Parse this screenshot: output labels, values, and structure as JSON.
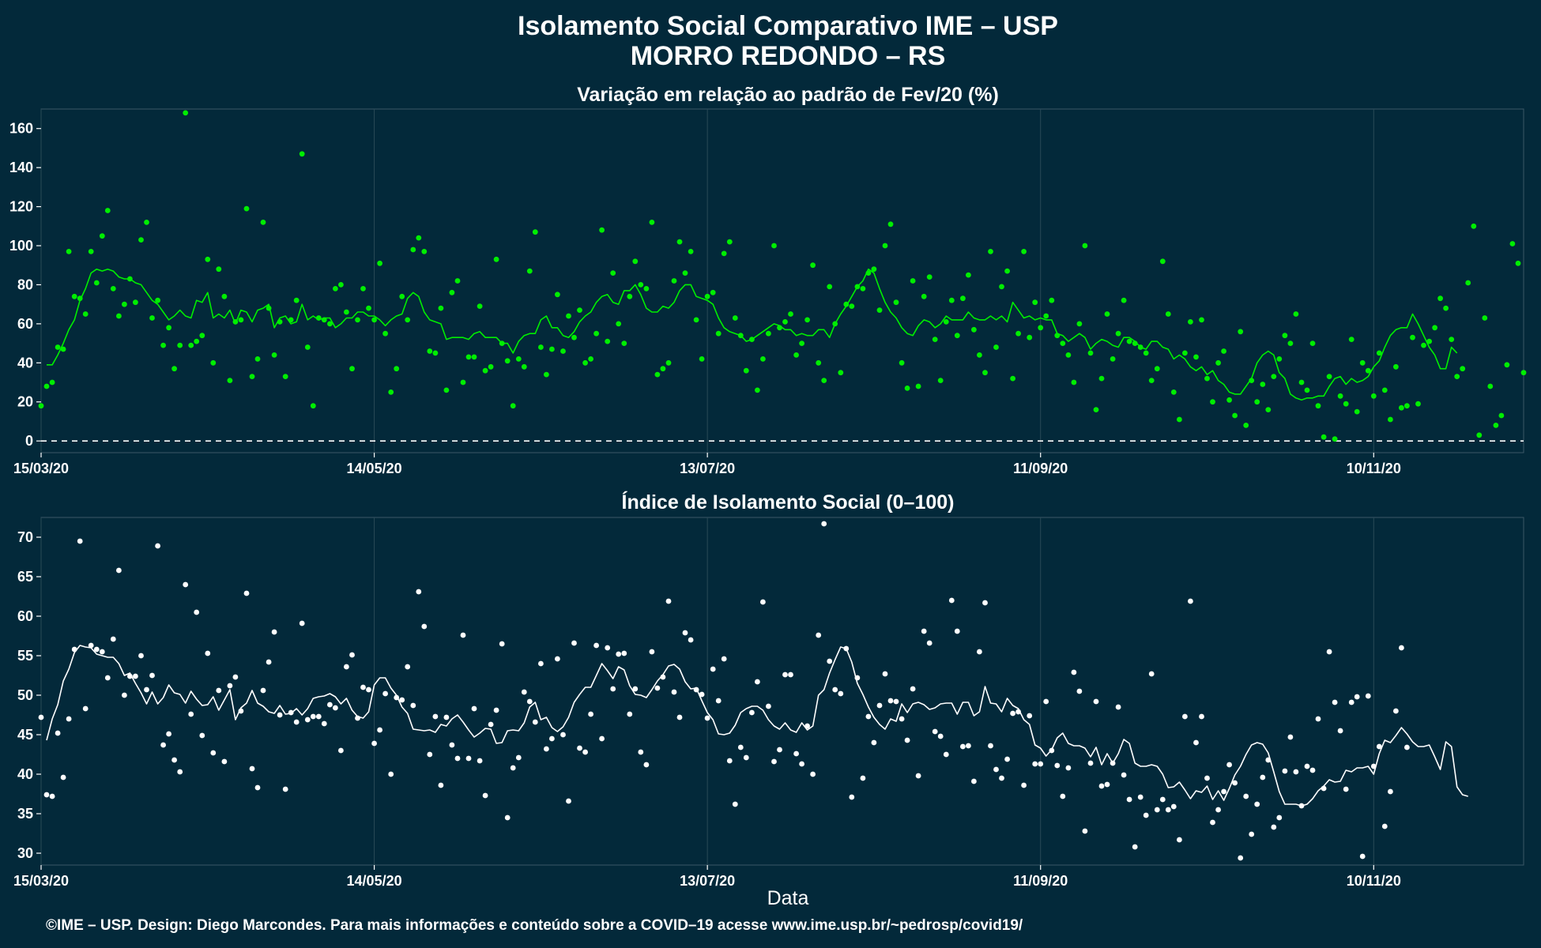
{
  "title": "Isolamento Social Comparativo IME – USP",
  "subtitle": "MORRO REDONDO – RS",
  "footer": "©IME – USP. Design: Diego Marcondes. Para mais informações e conteúdo sobre a COVID–19 acesse www.ime.usp.br/~pedrosp/covid19/",
  "colors": {
    "background": "#03293a",
    "variation_series": "#00ee00",
    "index_series": "#ffffff",
    "grid": "#2a4a57"
  },
  "chart_data": [
    {
      "type": "scatter",
      "title": "Variação em relação ao padrão de Fev/20 (%)",
      "xlabel": "",
      "ylabel": "",
      "x_ticks": [
        "15/03/20",
        "14/05/20",
        "13/07/20",
        "11/09/20",
        "10/11/20"
      ],
      "y_ticks": [
        0,
        20,
        40,
        60,
        80,
        100,
        120,
        140,
        160
      ],
      "xlim": [
        "15/03/20",
        "07/12/20"
      ],
      "ylim": [
        -6,
        170
      ],
      "reference_line": 0,
      "grid": true,
      "series": [
        {
          "kind": "points",
          "start_date": "15/03/20",
          "values": [
            18,
            28,
            30,
            48,
            47,
            97,
            74,
            73,
            65,
            97,
            81,
            105,
            118,
            78,
            64,
            70,
            83,
            71,
            103,
            112,
            63,
            72,
            49,
            58,
            37,
            49,
            168,
            49,
            51,
            54,
            93,
            40,
            88,
            74,
            31,
            61,
            62,
            119,
            33,
            42,
            112,
            68,
            44,
            61,
            33,
            62,
            72,
            147,
            48,
            18,
            63,
            62,
            60,
            78,
            80,
            66,
            37,
            62,
            78,
            68,
            62,
            91,
            55,
            25,
            37,
            74,
            62,
            98,
            104,
            97,
            46,
            45,
            68,
            26,
            76,
            82,
            30,
            43,
            43,
            69,
            36,
            38,
            93,
            50,
            41,
            18,
            42,
            38,
            87,
            107,
            48,
            34,
            47,
            75,
            46,
            64,
            53,
            67,
            40,
            42,
            55,
            108,
            51,
            86,
            60,
            50,
            74,
            92,
            80,
            78,
            112,
            34,
            37,
            40,
            82,
            102,
            86,
            97,
            62,
            42,
            74,
            76,
            55,
            96,
            102,
            63,
            54,
            36,
            52,
            26,
            42,
            55,
            100,
            58,
            61,
            65,
            44,
            50,
            62,
            90,
            40,
            31,
            79,
            60,
            35,
            70,
            69,
            79,
            78,
            86,
            88,
            67,
            100,
            111,
            71,
            40,
            27,
            82,
            28,
            74,
            84,
            52,
            31,
            61,
            72,
            54,
            73,
            85,
            57,
            44,
            35,
            97,
            48,
            79,
            87,
            32,
            55,
            97,
            53,
            71,
            58,
            64,
            72,
            54,
            50,
            44,
            30,
            60,
            100,
            45,
            16,
            32,
            65,
            42,
            55,
            72,
            51,
            50,
            48,
            45,
            31,
            37,
            92,
            65,
            25,
            11,
            45,
            61,
            43,
            62,
            32,
            20,
            40,
            46,
            21,
            13,
            56,
            8,
            31,
            20,
            29,
            16,
            33,
            42,
            54,
            50,
            65,
            30,
            26,
            50,
            18,
            2,
            33,
            1,
            23,
            19,
            52,
            15,
            40,
            36,
            23,
            45,
            26,
            11,
            38,
            17,
            18,
            53,
            19,
            49,
            51,
            58,
            73,
            68,
            52,
            33,
            37,
            81,
            110,
            3,
            63,
            28,
            8,
            13,
            39,
            101,
            91,
            35
          ]
        },
        {
          "kind": "line",
          "start_date": "16/03/20",
          "values": [
            39,
            39,
            44,
            50,
            57,
            62,
            72,
            78,
            86,
            88,
            87,
            88,
            87,
            84,
            83,
            83,
            81,
            80,
            76,
            72,
            70,
            66,
            62,
            64,
            67,
            64,
            63,
            72,
            71,
            76,
            63,
            65,
            63,
            67,
            60,
            67,
            66,
            61,
            67,
            68,
            70,
            58,
            63,
            64,
            60,
            61,
            70,
            62,
            64,
            62,
            63,
            63,
            58,
            60,
            63,
            63,
            66,
            66,
            64,
            64,
            62,
            59,
            62,
            64,
            65,
            73,
            76,
            74,
            66,
            62,
            61,
            60,
            52,
            53,
            53,
            53,
            52,
            55,
            56,
            53,
            53,
            53,
            50,
            50,
            45,
            51,
            54,
            55,
            55,
            62,
            64,
            58,
            58,
            54,
            53,
            56,
            61,
            64,
            66,
            71,
            74,
            75,
            71,
            70,
            77,
            77,
            80,
            75,
            68,
            66,
            66,
            69,
            68,
            71,
            77,
            80,
            80,
            74,
            73,
            72,
            70,
            63,
            58,
            56,
            55,
            54,
            51,
            52,
            54,
            56,
            58,
            60,
            59,
            57,
            57,
            54,
            55,
            54,
            54,
            57,
            57,
            53,
            60,
            65,
            69,
            74,
            79,
            82,
            88,
            86,
            78,
            71,
            66,
            63,
            58,
            55,
            54,
            59,
            62,
            61,
            58,
            60,
            64,
            62,
            62,
            62,
            66,
            63,
            62,
            62,
            64,
            62,
            64,
            61,
            71,
            67,
            63,
            64,
            62,
            63,
            62,
            62,
            55,
            54,
            51,
            53,
            55,
            53,
            47,
            50,
            52,
            51,
            49,
            48,
            53,
            53,
            51,
            48,
            47,
            51,
            51,
            48,
            47,
            42,
            44,
            42,
            38,
            36,
            38,
            34,
            36,
            31,
            29,
            25,
            24,
            24,
            28,
            32,
            40,
            44,
            46,
            44,
            35,
            32,
            24,
            22,
            21,
            22,
            22,
            23,
            23,
            28,
            32,
            33,
            29,
            32,
            30,
            31,
            33,
            38,
            41,
            48,
            54,
            57,
            58,
            58,
            65,
            60,
            54,
            48,
            44,
            37,
            37,
            48,
            45
          ]
        }
      ]
    },
    {
      "type": "scatter",
      "title": "Índice de Isolamento Social (0–100)",
      "xlabel": "Data",
      "ylabel": "",
      "x_ticks": [
        "15/03/20",
        "14/05/20",
        "13/07/20",
        "11/09/20",
        "10/11/20"
      ],
      "y_ticks": [
        30,
        35,
        40,
        45,
        50,
        55,
        60,
        65,
        70
      ],
      "xlim": [
        "15/03/20",
        "07/12/20"
      ],
      "ylim": [
        28.5,
        72.5
      ],
      "grid": true,
      "series": [
        {
          "kind": "points",
          "start_date": "15/03/20",
          "values": [
            47.2,
            37.4,
            37.2,
            45.2,
            39.6,
            47.0,
            55.8,
            69.5,
            48.3,
            56.3,
            55.8,
            55.5,
            52.2,
            57.1,
            65.8,
            50.0,
            52.4,
            52.4,
            55.0,
            50.7,
            52.5,
            68.9,
            43.7,
            45.1,
            41.8,
            40.3,
            64.0,
            47.6,
            60.5,
            44.9,
            55.3,
            42.7,
            50.6,
            41.6,
            51.2,
            52.3,
            48.0,
            62.9,
            40.7,
            38.3,
            50.6,
            54.2,
            58.0,
            47.5,
            38.1,
            47.8,
            46.6,
            59.1,
            46.9,
            47.3,
            47.3,
            46.4,
            48.8,
            48.4,
            43.0,
            53.6,
            55.1,
            47.1,
            51.0,
            50.7,
            43.9,
            45.6,
            50.2,
            40.0,
            49.7,
            49.4,
            53.6,
            48.7,
            63.1,
            58.7,
            42.5,
            47.3,
            38.6,
            47.2,
            43.7,
            42.0,
            57.6,
            42.0,
            48.3,
            41.7,
            37.3,
            46.3,
            48.1,
            56.5,
            34.5,
            40.8,
            42.1,
            50.4,
            49.2,
            46.6,
            54.0,
            43.2,
            44.5,
            54.6,
            45.0,
            36.6,
            56.6,
            43.3,
            42.8,
            47.6,
            56.3,
            44.5,
            56.0,
            50.8,
            55.2,
            55.3,
            47.6,
            50.8,
            42.8,
            41.2,
            55.5,
            50.9,
            52.3,
            61.9,
            50.4,
            47.2,
            57.9,
            57.0,
            50.7,
            50.1,
            47.1,
            53.3,
            49.3,
            54.6,
            41.7,
            36.2,
            43.4,
            42.1,
            47.8,
            51.7,
            61.8,
            48.6,
            41.6,
            43.1,
            52.6,
            52.6,
            42.6,
            41.3,
            46.1,
            40.0,
            57.6,
            71.7,
            54.3,
            50.7,
            50.2,
            55.9,
            37.1,
            52.2,
            39.5,
            47.3,
            44.0,
            48.7,
            52.7,
            49.3,
            49.2,
            47.0,
            44.3,
            50.8,
            39.8,
            58.1,
            56.6,
            45.4,
            44.8,
            42.5,
            62.0,
            58.1,
            43.5,
            43.6,
            39.1,
            55.5,
            61.7,
            43.6,
            40.6,
            39.5,
            41.9,
            47.7,
            47.9,
            38.6,
            47.4,
            41.3,
            41.3,
            49.2,
            43.0,
            41.1,
            37.2,
            40.8,
            52.9,
            50.5,
            32.8,
            41.4,
            49.2,
            38.5,
            38.7,
            41.4,
            48.5,
            39.9,
            36.8,
            30.8,
            37.1,
            34.8,
            52.7,
            35.5,
            36.8,
            35.5,
            35.9,
            31.7,
            47.3,
            61.9,
            44.0,
            47.3,
            39.5,
            33.9,
            35.5,
            37.8,
            41.2,
            38.9,
            29.4,
            37.2,
            32.4,
            36.2,
            39.6,
            41.8,
            33.3,
            34.5,
            40.4,
            44.7,
            40.3,
            36.0,
            41.0,
            40.5,
            47.0,
            38.2,
            55.5,
            49.1,
            45.5,
            38.1,
            49.1,
            49.8,
            29.6,
            49.9,
            41.0,
            43.5,
            33.4,
            37.8,
            48.0,
            56.0,
            43.4
          ]
        },
        {
          "kind": "line",
          "start_date": "16/03/20",
          "values": [
            44.3,
            47.0,
            48.8,
            51.8,
            53.3,
            55.4,
            56.3,
            56.1,
            56.0,
            55.2,
            55.0,
            54.8,
            54.8,
            54.0,
            52.5,
            52.8,
            51.5,
            50.3,
            48.9,
            50.4,
            48.9,
            49.7,
            51.3,
            50.3,
            50.1,
            49.0,
            50.5,
            49.5,
            48.7,
            48.8,
            49.8,
            48.1,
            49.4,
            50.7,
            46.9,
            48.4,
            49.0,
            50.6,
            49.0,
            48.6,
            47.9,
            47.7,
            48.7,
            47.6,
            47.7,
            48.3,
            47.5,
            48.3,
            49.6,
            49.8,
            49.9,
            50.2,
            49.8,
            48.9,
            49.6,
            48.1,
            47.3,
            47.1,
            47.9,
            51.3,
            52.2,
            52.2,
            50.9,
            50.0,
            48.5,
            47.7,
            45.7,
            45.6,
            45.5,
            45.6,
            45.3,
            46.3,
            46.1,
            47.0,
            47.5,
            46.6,
            45.6,
            44.7,
            45.2,
            45.8,
            45.7,
            43.9,
            44.0,
            45.5,
            45.6,
            45.5,
            46.5,
            48.5,
            49.1,
            46.9,
            47.2,
            45.9,
            45.4,
            46.0,
            47.2,
            49.1,
            50.1,
            51.0,
            51.0,
            52.5,
            54.0,
            53.1,
            52.1,
            53.6,
            53.2,
            51.2,
            50.1,
            50.0,
            49.7,
            50.7,
            51.8,
            52.6,
            53.7,
            53.9,
            53.3,
            51.7,
            50.8,
            50.9,
            49.3,
            47.8,
            46.9,
            45.1,
            45.0,
            45.2,
            46.2,
            47.8,
            48.3,
            48.6,
            48.6,
            48.1,
            46.9,
            46.1,
            45.7,
            46.5,
            45.6,
            45.3,
            46.5,
            45.6,
            46.1,
            50.0,
            50.7,
            52.8,
            54.5,
            56.1,
            55.9,
            54.2,
            51.5,
            50.1,
            48.5,
            47.2,
            46.3,
            45.7,
            47.0,
            46.7,
            48.9,
            47.8,
            48.9,
            49.1,
            48.8,
            48.2,
            48.4,
            48.9,
            49.0,
            49.0,
            47.6,
            49.1,
            49.1,
            47.4,
            47.9,
            51.1,
            49.0,
            48.9,
            47.9,
            49.6,
            48.7,
            48.3,
            46.9,
            46.3,
            43.7,
            43.3,
            42.3,
            43.1,
            44.6,
            45.2,
            43.9,
            43.6,
            43.6,
            43.3,
            42.2,
            43.4,
            41.2,
            42.6,
            41.4,
            42.6,
            44.4,
            43.9,
            41.4,
            41.0,
            41.0,
            41.2,
            41.0,
            40.0,
            38.3,
            38.4,
            39.0,
            38.0,
            36.9,
            37.9,
            37.7,
            38.5,
            36.8,
            37.9,
            36.7,
            38.2,
            39.9,
            41.0,
            42.5,
            43.7,
            44.0,
            43.8,
            42.7,
            40.3,
            37.8,
            36.2,
            36.2,
            36.2,
            36.0,
            36.2,
            36.9,
            37.9,
            38.5,
            39.3,
            39.0,
            39.1,
            40.5,
            40.3,
            40.8,
            40.8,
            41.0,
            40.0,
            42.6,
            44.3,
            44.0,
            44.9,
            45.9,
            45.1,
            44.1,
            43.5,
            43.5,
            43.7,
            42.2,
            40.6,
            44.1,
            43.5,
            38.4,
            37.4,
            37.2
          ]
        }
      ]
    }
  ]
}
